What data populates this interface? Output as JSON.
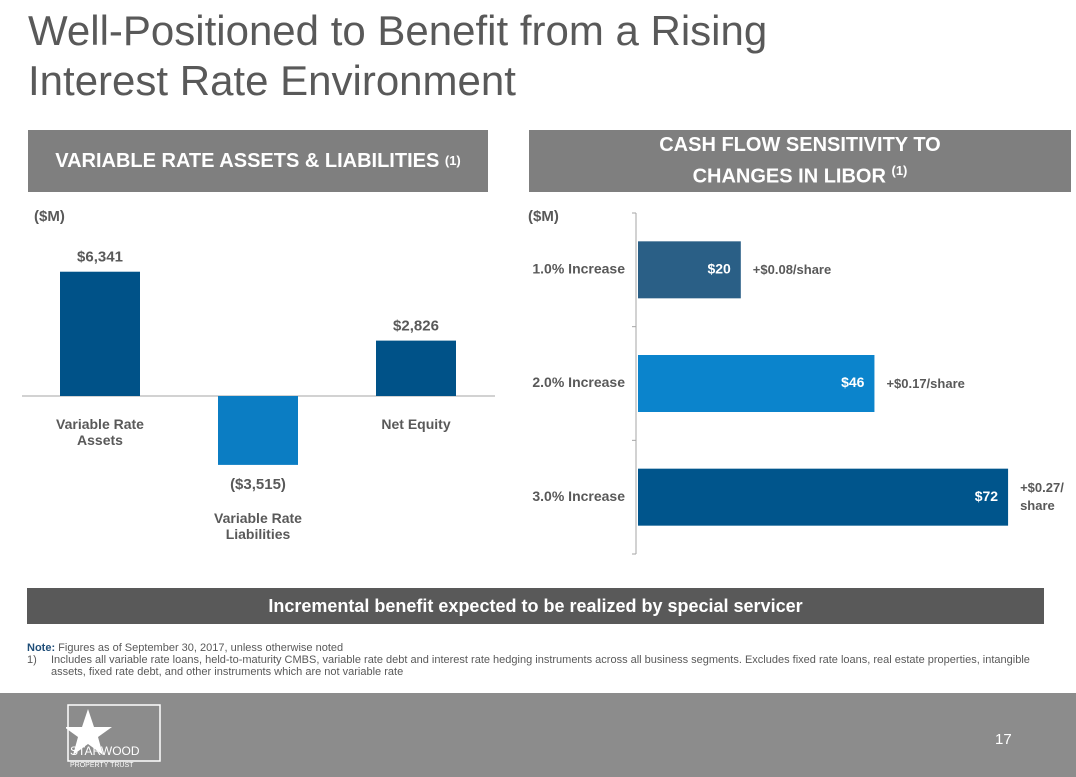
{
  "slide": {
    "title": "Well-Positioned to Benefit from a Rising Interest Rate Environment",
    "banner": "Incremental benefit expected to be realized by special servicer",
    "note_label": "Note:",
    "note_text": "Figures as of September 30, 2017, unless otherwise noted",
    "footnotes": [
      {
        "marker": "1)",
        "text": "Includes all variable rate loans, held-to-maturity CMBS, variable rate debt and interest rate hedging instruments across all business segments.  Excludes fixed rate loans, real estate properties, intangible assets, fixed rate debt, and other instruments which are not variable rate"
      }
    ],
    "logo_name": "STARWOOD",
    "logo_sub": "PROPERTY TRUST",
    "page_number": "17"
  },
  "chart_data": [
    {
      "type": "bar",
      "title": "VARIABLE RATE ASSETS & LIABILITIES",
      "title_note": "(1)",
      "unit": "($M)",
      "categories": [
        "Variable Rate Assets",
        "Variable Rate Liabilities",
        "Net Equity"
      ],
      "values": [
        6341,
        -3515,
        2826
      ],
      "value_labels": [
        "$6,341",
        "($3,515)",
        "$2,826"
      ],
      "colors": [
        "#005288",
        "#0b7dc3",
        "#005288"
      ]
    },
    {
      "type": "hbar",
      "title": "CASH FLOW SENSITIVITY TO CHANGES IN LIBOR",
      "title_note": "(1)",
      "unit": "($M)",
      "categories": [
        "1.0% Increase",
        "2.0% Increase",
        "3.0% Increase"
      ],
      "values": [
        20,
        46,
        72
      ],
      "value_labels": [
        "$20",
        "$46",
        "$72"
      ],
      "annotations": [
        "+$0.08/share",
        "+$0.17/share",
        "+$0.27/share"
      ],
      "colors": [
        "#2a5f86",
        "#0b84cc",
        "#00558c"
      ]
    }
  ]
}
